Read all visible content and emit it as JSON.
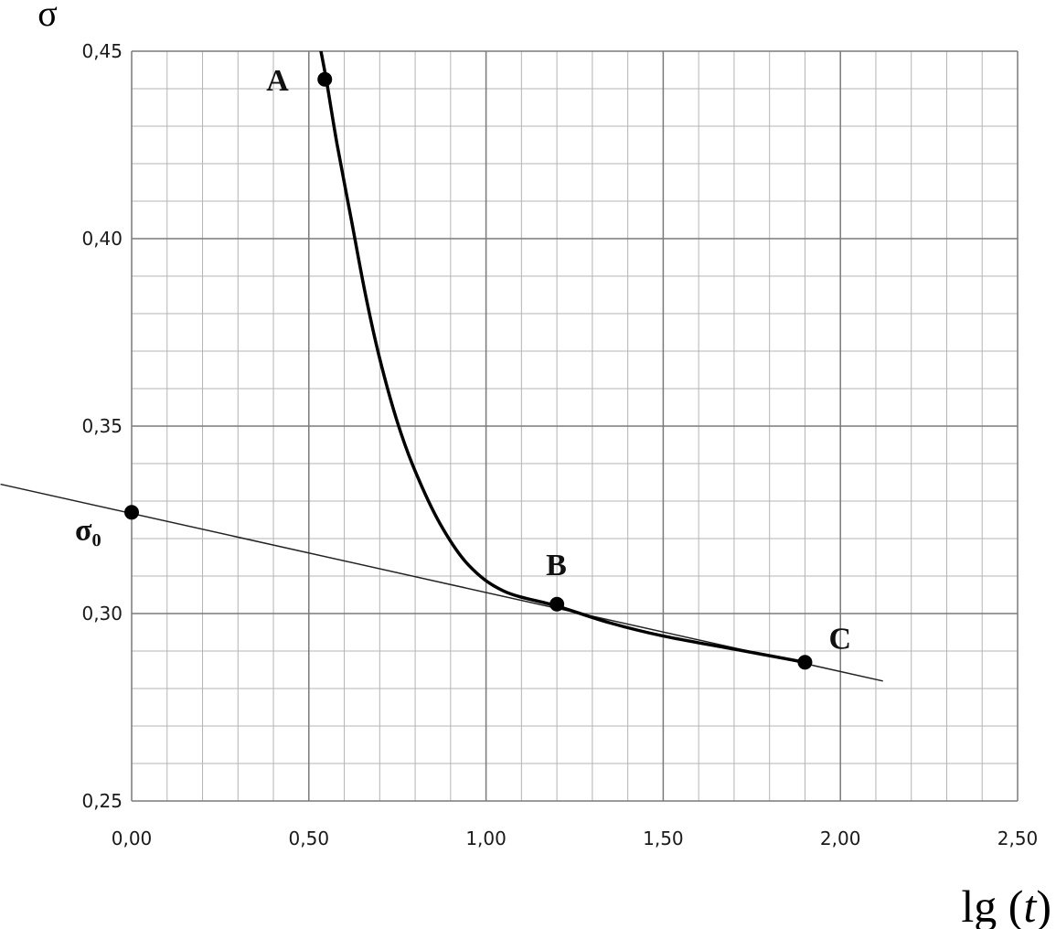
{
  "chart_data": {
    "type": "line",
    "title": "",
    "xlabel_main": "lg (",
    "xlabel_var": "t",
    "xlabel_close": ")",
    "ylabel": "σ",
    "xlim": [
      0,
      2.5
    ],
    "ylim": [
      0.25,
      0.45
    ],
    "x_ticks": [
      0,
      0.5,
      1.0,
      1.5,
      2.0,
      2.5
    ],
    "x_tick_labels": [
      "0,00",
      "0,50",
      "1,00",
      "1,50",
      "2,00",
      "2,50"
    ],
    "y_ticks": [
      0.25,
      0.3,
      0.35,
      0.4,
      0.45
    ],
    "y_tick_labels": [
      "0,25",
      "0,30",
      "0,35",
      "0,40",
      "0,45"
    ],
    "grid": true,
    "minor_grid": {
      "x_step": 0.1,
      "y_step": 0.01
    },
    "series": [
      {
        "kind": "curve",
        "points": [
          [
            0.53,
            0.452
          ],
          [
            0.55,
            0.442
          ],
          [
            0.58,
            0.425
          ],
          [
            0.62,
            0.405
          ],
          [
            0.66,
            0.385
          ],
          [
            0.7,
            0.368
          ],
          [
            0.75,
            0.351
          ],
          [
            0.8,
            0.338
          ],
          [
            0.87,
            0.324
          ],
          [
            0.95,
            0.313
          ],
          [
            1.05,
            0.306
          ],
          [
            1.2,
            0.302
          ],
          [
            1.35,
            0.2975
          ],
          [
            1.5,
            0.294
          ],
          [
            1.7,
            0.2905
          ],
          [
            1.9,
            0.287
          ]
        ]
      },
      {
        "kind": "tangent",
        "points": [
          [
            -0.37,
            0.3345
          ],
          [
            2.12,
            0.282
          ]
        ]
      }
    ],
    "marked_points": [
      {
        "label": "A",
        "x": 0.545,
        "y": 0.4425
      },
      {
        "label": "σ₀",
        "x": 0.0,
        "y": 0.327
      },
      {
        "label": "B",
        "x": 1.2,
        "y": 0.3025
      },
      {
        "label": "C",
        "x": 1.9,
        "y": 0.287
      }
    ]
  }
}
